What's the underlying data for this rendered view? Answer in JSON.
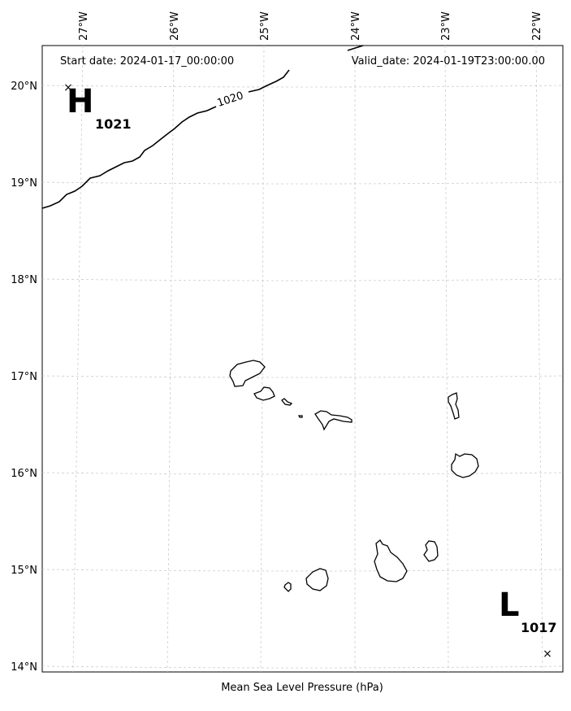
{
  "map": {
    "start_date_text": "Start date: 2024-01-17_00:00:00",
    "valid_date_text": "Valid_date: 2024-01-19T23:00:00.00",
    "caption": "Mean Sea Level Pressure (hPa)",
    "lon_labels": [
      "27°W",
      "26°W",
      "25°W",
      "24°W",
      "23°W",
      "22°W"
    ],
    "lat_labels": [
      "20°N",
      "19°N",
      "18°N",
      "17°N",
      "16°N",
      "15°N",
      "14°N"
    ],
    "isobar_label": "1020",
    "high": {
      "letter": "H",
      "value": "1021"
    },
    "low": {
      "letter": "L",
      "value": "1017"
    },
    "marker_symbol": "×"
  }
}
